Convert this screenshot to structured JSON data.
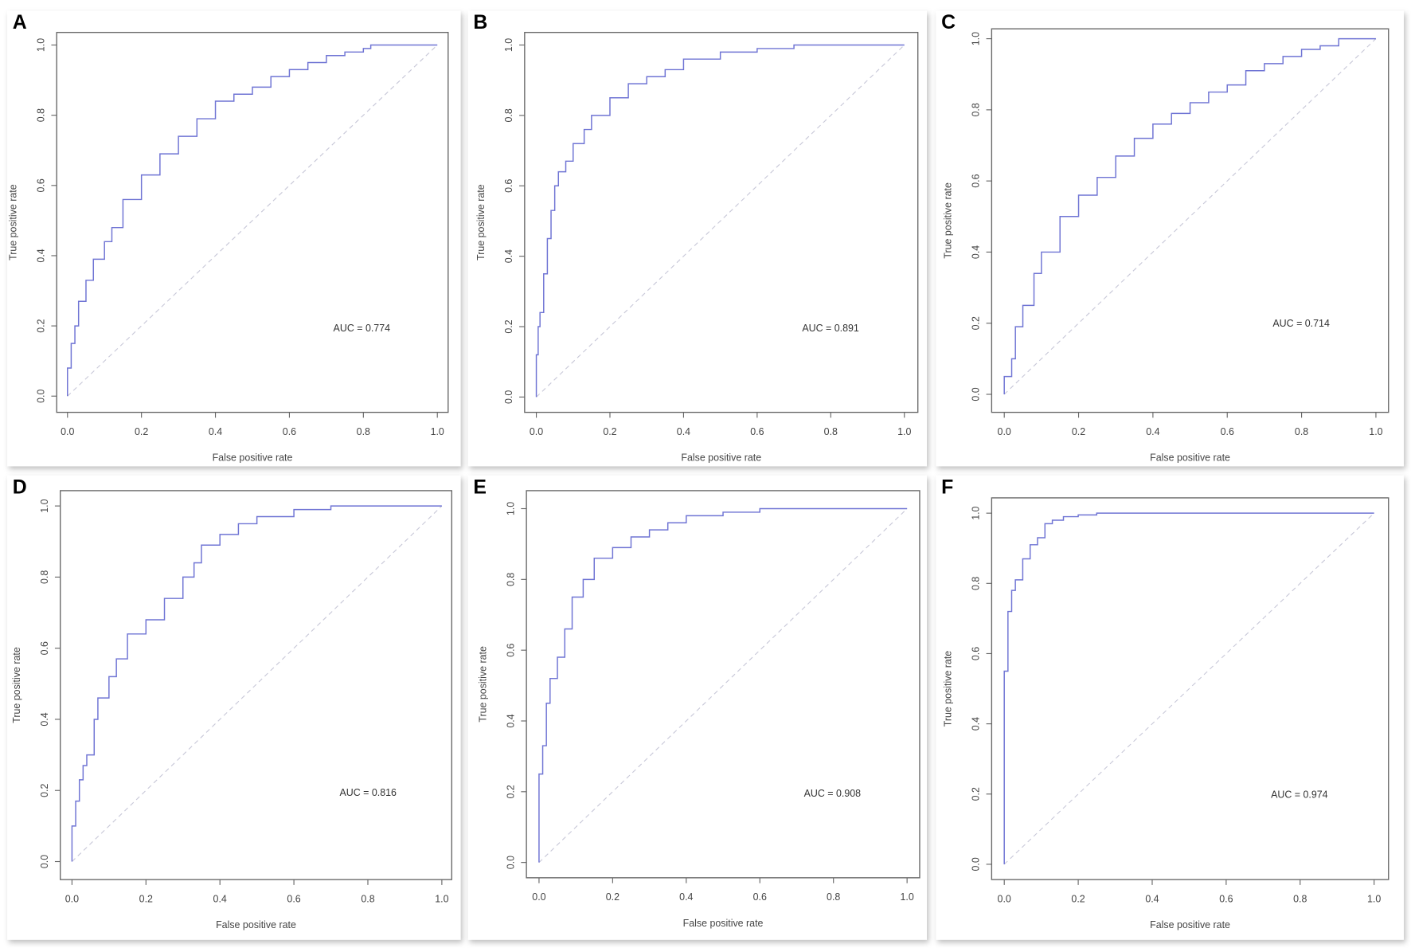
{
  "chart_data": [
    {
      "type": "line",
      "panel_label": "A",
      "xlabel": "False positive rate",
      "ylabel": "True positive rate",
      "xlim": [
        0,
        1
      ],
      "ylim": [
        0,
        1
      ],
      "xticks": [
        "0.0",
        "0.2",
        "0.4",
        "0.6",
        "0.8",
        "1.0"
      ],
      "yticks": [
        "0.0",
        "0.2",
        "0.4",
        "0.6",
        "0.8",
        "1.0"
      ],
      "annotation": "AUC = 0.774",
      "diagonal_reference": true,
      "grid": false,
      "colors": {
        "curve": "#6f74d4",
        "diagonal": "#c8c8d8"
      },
      "x": [
        0,
        0.01,
        0.02,
        0.03,
        0.05,
        0.07,
        0.1,
        0.12,
        0.15,
        0.2,
        0.25,
        0.3,
        0.35,
        0.4,
        0.45,
        0.5,
        0.55,
        0.6,
        0.65,
        0.7,
        0.75,
        0.8,
        0.82,
        0.9,
        1
      ],
      "y": [
        0,
        0.08,
        0.15,
        0.2,
        0.27,
        0.33,
        0.39,
        0.44,
        0.48,
        0.56,
        0.63,
        0.69,
        0.74,
        0.79,
        0.84,
        0.86,
        0.88,
        0.91,
        0.93,
        0.95,
        0.97,
        0.98,
        0.99,
        1,
        1
      ]
    },
    {
      "type": "line",
      "panel_label": "B",
      "xlabel": "False positive rate",
      "ylabel": "True positive rate",
      "xlim": [
        0,
        1
      ],
      "ylim": [
        0,
        1
      ],
      "xticks": [
        "0.0",
        "0.2",
        "0.4",
        "0.6",
        "0.8",
        "1.0"
      ],
      "yticks": [
        "0.0",
        "0.2",
        "0.4",
        "0.6",
        "0.8",
        "1.0"
      ],
      "annotation": "AUC = 0.891",
      "diagonal_reference": true,
      "grid": false,
      "colors": {
        "curve": "#6f74d4",
        "diagonal": "#c8c8d8"
      },
      "x": [
        0,
        0.005,
        0.01,
        0.02,
        0.03,
        0.04,
        0.05,
        0.06,
        0.08,
        0.1,
        0.13,
        0.15,
        0.2,
        0.25,
        0.3,
        0.35,
        0.4,
        0.5,
        0.6,
        0.7,
        0.8,
        1
      ],
      "y": [
        0,
        0.12,
        0.2,
        0.24,
        0.35,
        0.45,
        0.53,
        0.6,
        0.64,
        0.67,
        0.72,
        0.76,
        0.8,
        0.85,
        0.89,
        0.91,
        0.93,
        0.96,
        0.98,
        0.99,
        1,
        1
      ]
    },
    {
      "type": "line",
      "panel_label": "C",
      "xlabel": "False positive rate",
      "ylabel": "True positive rate",
      "xlim": [
        0,
        1
      ],
      "ylim": [
        0,
        1
      ],
      "xticks": [
        "0.0",
        "0.2",
        "0.4",
        "0.6",
        "0.8",
        "1.0"
      ],
      "yticks": [
        "0.0",
        "0.2",
        "0.4",
        "0.6",
        "0.8",
        "1.0"
      ],
      "annotation": "AUC = 0.714",
      "diagonal_reference": true,
      "grid": false,
      "colors": {
        "curve": "#6f74d4",
        "diagonal": "#c8c8d8"
      },
      "x": [
        0,
        0.02,
        0.03,
        0.05,
        0.08,
        0.1,
        0.15,
        0.2,
        0.25,
        0.3,
        0.35,
        0.4,
        0.45,
        0.5,
        0.55,
        0.6,
        0.65,
        0.7,
        0.75,
        0.8,
        0.85,
        0.9,
        0.95,
        1
      ],
      "y": [
        0,
        0.05,
        0.1,
        0.19,
        0.25,
        0.34,
        0.4,
        0.5,
        0.56,
        0.61,
        0.67,
        0.72,
        0.76,
        0.79,
        0.82,
        0.85,
        0.87,
        0.91,
        0.93,
        0.95,
        0.97,
        0.98,
        1,
        1
      ]
    },
    {
      "type": "line",
      "panel_label": "D",
      "xlabel": "False positive rate",
      "ylabel": "True positive rate",
      "xlim": [
        0,
        1
      ],
      "ylim": [
        0,
        1
      ],
      "xticks": [
        "0.0",
        "0.2",
        "0.4",
        "0.6",
        "0.8",
        "1.0"
      ],
      "yticks": [
        "0.0",
        "0.2",
        "0.4",
        "0.6",
        "0.8",
        "1.0"
      ],
      "annotation": "AUC = 0.816",
      "diagonal_reference": true,
      "grid": false,
      "colors": {
        "curve": "#6f74d4",
        "diagonal": "#c8c8d8"
      },
      "x": [
        0,
        0,
        0.01,
        0.02,
        0.03,
        0.04,
        0.06,
        0.07,
        0.1,
        0.12,
        0.15,
        0.2,
        0.25,
        0.3,
        0.33,
        0.35,
        0.4,
        0.45,
        0.5,
        0.6,
        0.7,
        0.8,
        1
      ],
      "y": [
        0,
        0.05,
        0.1,
        0.17,
        0.23,
        0.27,
        0.3,
        0.4,
        0.46,
        0.52,
        0.57,
        0.64,
        0.68,
        0.74,
        0.8,
        0.84,
        0.89,
        0.92,
        0.95,
        0.97,
        0.99,
        1,
        1
      ]
    },
    {
      "type": "line",
      "panel_label": "E",
      "xlabel": "False positive rate",
      "ylabel": "True positive rate",
      "xlim": [
        0,
        1
      ],
      "ylim": [
        0,
        1
      ],
      "xticks": [
        "0.0",
        "0.2",
        "0.4",
        "0.6",
        "0.8",
        "1.0"
      ],
      "yticks": [
        "0.0",
        "0.2",
        "0.4",
        "0.6",
        "0.8",
        "1.0"
      ],
      "annotation": "AUC = 0.908",
      "diagonal_reference": true,
      "grid": false,
      "colors": {
        "curve": "#6f74d4",
        "diagonal": "#c8c8d8"
      },
      "x": [
        0,
        0,
        0.01,
        0.02,
        0.03,
        0.05,
        0.07,
        0.09,
        0.12,
        0.15,
        0.2,
        0.25,
        0.3,
        0.35,
        0.4,
        0.5,
        0.6,
        0.7,
        1
      ],
      "y": [
        0,
        0.2,
        0.25,
        0.33,
        0.45,
        0.52,
        0.58,
        0.66,
        0.75,
        0.8,
        0.86,
        0.89,
        0.92,
        0.94,
        0.96,
        0.98,
        0.99,
        1,
        1
      ]
    },
    {
      "type": "line",
      "panel_label": "F",
      "xlabel": "False positive rate",
      "ylabel": "True positive rate",
      "xlim": [
        0,
        1
      ],
      "ylim": [
        0,
        1
      ],
      "xticks": [
        "0.0",
        "0.2",
        "0.4",
        "0.6",
        "0.8",
        "1.0"
      ],
      "yticks": [
        "0.0",
        "0.2",
        "0.4",
        "0.6",
        "0.8",
        "1.0"
      ],
      "annotation": "AUC = 0.974",
      "diagonal_reference": true,
      "grid": false,
      "colors": {
        "curve": "#6f74d4",
        "diagonal": "#c8c8d8"
      },
      "x": [
        0,
        0,
        0.01,
        0.01,
        0.02,
        0.03,
        0.05,
        0.07,
        0.09,
        0.11,
        0.13,
        0.16,
        0.2,
        0.25,
        0.5,
        1
      ],
      "y": [
        0,
        0.47,
        0.55,
        0.7,
        0.72,
        0.78,
        0.81,
        0.87,
        0.91,
        0.93,
        0.97,
        0.98,
        0.99,
        0.995,
        1,
        1
      ]
    }
  ]
}
